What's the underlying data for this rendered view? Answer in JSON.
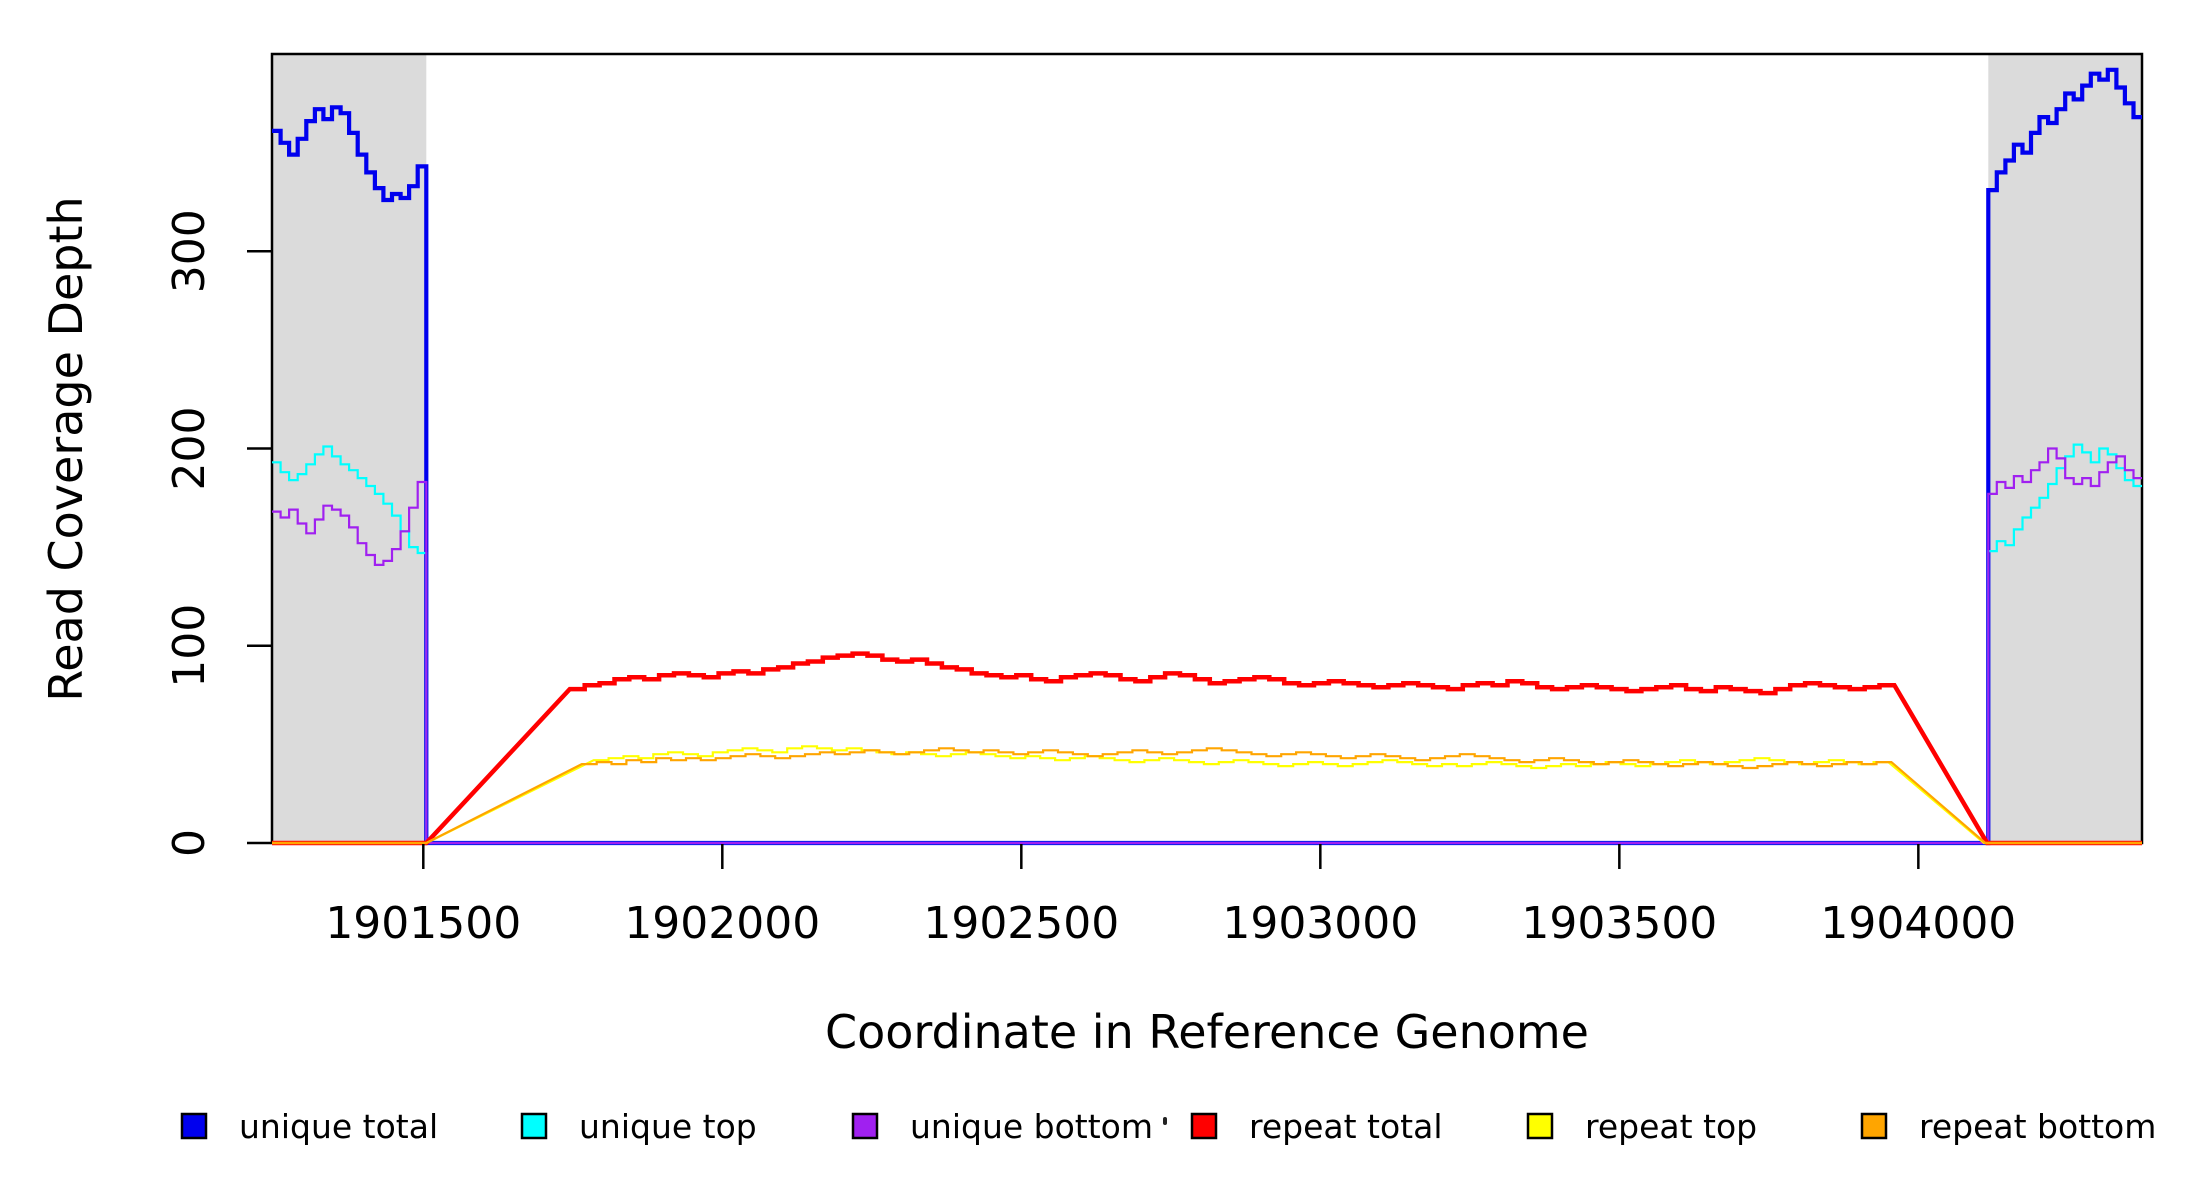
{
  "figure": {
    "background": "#ffffff",
    "plot_border_color": "#000000",
    "shade_color": "#dbdbdb"
  },
  "chart_data": {
    "type": "line",
    "title": "",
    "xlabel": "Coordinate in Reference Genome",
    "ylabel": "Read Coverage Depth",
    "xlim": [
      1901247,
      1904374
    ],
    "ylim": [
      0,
      400
    ],
    "x_ticks": [
      1901500,
      1902000,
      1902500,
      1903000,
      1903500,
      1904000
    ],
    "y_ticks": [
      0,
      100,
      200,
      300
    ],
    "grid": false,
    "box": true,
    "shaded_regions": [
      {
        "x1": 1901247,
        "x2": 1901505
      },
      {
        "x1": 1904117,
        "x2": 1904374
      }
    ],
    "series": [
      {
        "name": "unique total",
        "color": "#0000ee",
        "width": 4.2,
        "segments": [
          {
            "steps": {
              "x0": 1901247,
              "xend": 1901505,
              "v": [
                361,
                355,
                349,
                357,
                366,
                372,
                367,
                373,
                370,
                360,
                349,
                340,
                332,
                326,
                329,
                327,
                333,
                343
              ]
            }
          },
          {
            "p": [
              [
                1901505,
                0
              ],
              [
                1904117,
                0
              ]
            ]
          },
          {
            "steps": {
              "x0": 1904117,
              "xend": 1904374,
              "v": [
                331,
                340,
                346,
                354,
                350,
                360,
                368,
                365,
                372,
                380,
                377,
                384,
                390,
                387,
                392,
                383,
                375,
                368
              ]
            }
          }
        ]
      },
      {
        "name": "unique top",
        "color": "#00ffff",
        "width": 2.2,
        "segments": [
          {
            "steps": {
              "x0": 1901247,
              "xend": 1901505,
              "v": [
                193,
                188,
                184,
                187,
                192,
                197,
                201,
                196,
                192,
                189,
                185,
                181,
                177,
                172,
                166,
                158,
                150,
                147
              ]
            }
          },
          {
            "p": [
              [
                1901505,
                0
              ],
              [
                1904117,
                0
              ]
            ]
          },
          {
            "steps": {
              "x0": 1904117,
              "xend": 1904374,
              "v": [
                148,
                153,
                151,
                159,
                165,
                170,
                175,
                182,
                190,
                196,
                202,
                198,
                193,
                200,
                197,
                190,
                184,
                181
              ]
            }
          }
        ]
      },
      {
        "name": "unique bottom",
        "color": "#a020f0",
        "width": 2.2,
        "segments": [
          {
            "steps": {
              "x0": 1901247,
              "xend": 1901505,
              "v": [
                168,
                165,
                169,
                162,
                157,
                164,
                171,
                169,
                166,
                160,
                152,
                146,
                141,
                143,
                149,
                158,
                170,
                183
              ]
            }
          },
          {
            "p": [
              [
                1901505,
                0
              ],
              [
                1904117,
                0
              ]
            ]
          },
          {
            "steps": {
              "x0": 1904117,
              "xend": 1904374,
              "v": [
                177,
                183,
                180,
                186,
                183,
                189,
                193,
                200,
                195,
                185,
                182,
                185,
                181,
                188,
                193,
                196,
                189,
                185
              ]
            }
          }
        ]
      },
      {
        "name": "repeat total",
        "color": "#ff0000",
        "width": 4.5,
        "segments": [
          {
            "p": [
              [
                1901247,
                0
              ],
              [
                1901505,
                0
              ],
              [
                1901745,
                78
              ]
            ]
          },
          {
            "steps": {
              "x0": 1901745,
              "xend": 1903960,
              "v": [
                78,
                80,
                81,
                83,
                84,
                83,
                85,
                86,
                85,
                84,
                86,
                87,
                86,
                88,
                89,
                91,
                92,
                94,
                95,
                96,
                95,
                93,
                92,
                93,
                91,
                89,
                88,
                86,
                85,
                84,
                85,
                83,
                82,
                84,
                85,
                86,
                85,
                83,
                82,
                84,
                86,
                85,
                83,
                81,
                82,
                83,
                84,
                83,
                81,
                80,
                81,
                82,
                81,
                80,
                79,
                80,
                81,
                80,
                79,
                78,
                80,
                81,
                80,
                82,
                81,
                79,
                78,
                79,
                80,
                79,
                78,
                77,
                78,
                79,
                80,
                78,
                77,
                79,
                78,
                77,
                76,
                78,
                80,
                81,
                80,
                79,
                78,
                79,
                80
              ]
            }
          },
          {
            "p": [
              [
                1904115,
                0
              ],
              [
                1904374,
                0
              ]
            ]
          }
        ]
      },
      {
        "name": "repeat top",
        "color": "#ffff00",
        "width": 2.2,
        "segments": [
          {
            "p": [
              [
                1901247,
                0
              ],
              [
                1901505,
                0
              ],
              [
                1901785,
                42
              ]
            ]
          },
          {
            "steps": {
              "x0": 1901785,
              "xend": 1903950,
              "v": [
                42,
                43,
                44,
                43,
                45,
                46,
                45,
                44,
                46,
                47,
                48,
                47,
                46,
                48,
                49,
                48,
                47,
                48,
                47,
                46,
                45,
                46,
                45,
                44,
                45,
                46,
                45,
                44,
                43,
                44,
                43,
                42,
                43,
                44,
                43,
                42,
                41,
                42,
                43,
                42,
                41,
                40,
                41,
                42,
                41,
                40,
                39,
                40,
                41,
                40,
                39,
                40,
                41,
                42,
                41,
                40,
                39,
                40,
                39,
                40,
                41,
                40,
                39,
                38,
                39,
                40,
                39,
                40,
                41,
                40,
                39,
                40,
                41,
                42,
                41,
                40,
                41,
                42,
                43,
                42,
                41,
                40,
                41,
                42,
                41,
                40,
                41
              ]
            }
          },
          {
            "p": [
              [
                1904110,
                0
              ],
              [
                1904374,
                0
              ]
            ]
          }
        ]
      },
      {
        "name": "repeat bottom",
        "color": "#ffa500",
        "width": 2.2,
        "segments": [
          {
            "p": [
              [
                1901247,
                0
              ],
              [
                1901505,
                0
              ],
              [
                1901765,
                40
              ]
            ]
          },
          {
            "steps": {
              "x0": 1901765,
              "xend": 1903955,
              "v": [
                40,
                41,
                40,
                42,
                41,
                43,
                42,
                43,
                42,
                43,
                44,
                45,
                44,
                43,
                44,
                45,
                46,
                45,
                46,
                47,
                46,
                45,
                46,
                47,
                48,
                47,
                46,
                47,
                46,
                45,
                46,
                47,
                46,
                45,
                44,
                45,
                46,
                47,
                46,
                45,
                46,
                47,
                48,
                47,
                46,
                45,
                44,
                45,
                46,
                45,
                44,
                43,
                44,
                45,
                44,
                43,
                42,
                43,
                44,
                45,
                44,
                43,
                42,
                41,
                42,
                43,
                42,
                41,
                40,
                41,
                42,
                41,
                40,
                39,
                40,
                41,
                40,
                39,
                38,
                39,
                40,
                41,
                40,
                39,
                40,
                41,
                40,
                41
              ]
            }
          },
          {
            "p": [
              [
                1904112,
                0
              ],
              [
                1904374,
                0
              ]
            ]
          }
        ]
      }
    ],
    "legend": {
      "position": "bottom",
      "swatch_border_color": "#000000",
      "items": [
        {
          "label": "unique total",
          "color": "#0000ee"
        },
        {
          "label": "unique top",
          "color": "#00ffff"
        },
        {
          "label": "unique bottom",
          "color": "#a020f0"
        },
        {
          "label": "repeat total",
          "color": "#ff0000"
        },
        {
          "label": "repeat top",
          "color": "#ffff00"
        },
        {
          "label": "repeat bottom",
          "color": "#ffa500"
        }
      ],
      "stray_mark": "·"
    }
  }
}
